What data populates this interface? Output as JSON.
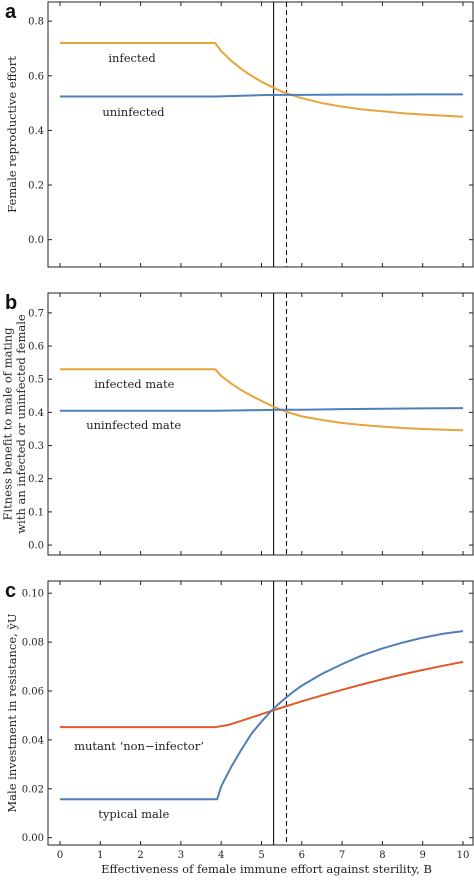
{
  "xaxis": {
    "label": "Effectiveness of female immune effort against sterility, B",
    "range": [
      0,
      10
    ],
    "ticks": [
      "0",
      "1",
      "2",
      "3",
      "4",
      "5",
      "6",
      "7",
      "8",
      "9",
      "10"
    ]
  },
  "vlines": {
    "solid_x": 5.3,
    "dashed_x": 5.62
  },
  "colors": {
    "orange": "#E8A33A",
    "blue": "#4F7FB8",
    "red": "#E05A2B",
    "frame": "#222222"
  },
  "chart_data": [
    {
      "type": "line",
      "panel": "a",
      "ylabel": "Female reproductive effort",
      "ylim": [
        -0.1,
        0.87
      ],
      "yticks": [
        "0.0",
        "0.2",
        "0.4",
        "0.6",
        "0.8"
      ],
      "series": [
        {
          "name": "infected",
          "color": "orange",
          "x": [
            0,
            1,
            2,
            3,
            3.85,
            4,
            4.25,
            4.5,
            4.75,
            5,
            5.25,
            5.5,
            5.75,
            6,
            6.5,
            7,
            7.5,
            8,
            8.5,
            9,
            9.5,
            10
          ],
          "y": [
            0.72,
            0.72,
            0.72,
            0.72,
            0.72,
            0.69,
            0.655,
            0.625,
            0.6,
            0.578,
            0.56,
            0.542,
            0.53,
            0.518,
            0.5,
            0.487,
            0.477,
            0.47,
            0.463,
            0.458,
            0.454,
            0.45
          ]
        },
        {
          "name": "uninfected",
          "color": "blue",
          "x": [
            0,
            1,
            2,
            3,
            3.85,
            4.5,
            5,
            5.5,
            6,
            7,
            8,
            9,
            10
          ],
          "y": [
            0.524,
            0.524,
            0.524,
            0.524,
            0.524,
            0.527,
            0.529,
            0.53,
            0.53,
            0.531,
            0.531,
            0.532,
            0.532
          ]
        }
      ],
      "annotations": [
        {
          "text": "infected",
          "x": 1.2,
          "y": 0.665
        },
        {
          "text": "uninfected",
          "x": 1.05,
          "y": 0.467
        }
      ]
    },
    {
      "type": "line",
      "panel": "b",
      "ylabel": "Fitness benefit to male of mating with an infected or uninfected female",
      "ylim": [
        -0.03,
        0.76
      ],
      "yticks": [
        "0.0",
        "0.1",
        "0.2",
        "0.3",
        "0.4",
        "0.5",
        "0.6",
        "0.7"
      ],
      "series": [
        {
          "name": "infected mate",
          "color": "orange",
          "x": [
            0,
            1,
            2,
            3,
            3.85,
            4,
            4.25,
            4.5,
            4.75,
            5,
            5.25,
            5.5,
            5.75,
            6,
            6.5,
            7,
            7.5,
            8,
            8.5,
            9,
            9.5,
            10
          ],
          "y": [
            0.53,
            0.53,
            0.53,
            0.53,
            0.53,
            0.51,
            0.487,
            0.467,
            0.45,
            0.435,
            0.42,
            0.407,
            0.397,
            0.388,
            0.377,
            0.368,
            0.362,
            0.357,
            0.353,
            0.35,
            0.348,
            0.346
          ]
        },
        {
          "name": "uninfected mate",
          "color": "blue",
          "x": [
            0,
            1,
            2,
            3,
            3.85,
            4.5,
            5,
            5.5,
            6,
            7,
            8,
            9,
            10
          ],
          "y": [
            0.405,
            0.405,
            0.405,
            0.405,
            0.405,
            0.406,
            0.407,
            0.408,
            0.408,
            0.41,
            0.411,
            0.412,
            0.413
          ]
        }
      ],
      "annotations": [
        {
          "text": "infected mate",
          "x": 0.85,
          "y": 0.485
        },
        {
          "text": "uninfected mate",
          "x": 0.65,
          "y": 0.362
        }
      ]
    },
    {
      "type": "line",
      "panel": "c",
      "ylabel": "Male investment in resistance, ỹU",
      "ylim": [
        -0.003,
        0.105
      ],
      "yticks": [
        "0.00",
        "0.02",
        "0.04",
        "0.06",
        "0.08",
        "0.10"
      ],
      "series": [
        {
          "name": "mutant ‘non−infector’",
          "color": "red",
          "x": [
            0,
            1,
            2,
            3,
            3.85,
            4.2,
            4.5,
            5,
            5.5,
            6,
            6.5,
            7,
            7.5,
            8,
            8.5,
            9,
            9.5,
            10
          ],
          "y": [
            0.0452,
            0.0452,
            0.0452,
            0.0452,
            0.0452,
            0.0462,
            0.0478,
            0.0505,
            0.0532,
            0.0558,
            0.0582,
            0.0605,
            0.0627,
            0.0648,
            0.0668,
            0.0686,
            0.0703,
            0.0719
          ]
        },
        {
          "name": "typical male",
          "color": "blue",
          "x": [
            0,
            1,
            2,
            3,
            3.9,
            4,
            4.25,
            4.5,
            4.75,
            5,
            5.25,
            5.5,
            5.75,
            6,
            6.5,
            7,
            7.5,
            8,
            8.5,
            9,
            9.5,
            10
          ],
          "y": [
            0.0157,
            0.0157,
            0.0157,
            0.0157,
            0.0157,
            0.021,
            0.029,
            0.036,
            0.0425,
            0.0475,
            0.052,
            0.0558,
            0.0592,
            0.0622,
            0.067,
            0.071,
            0.0746,
            0.0774,
            0.0798,
            0.0818,
            0.0834,
            0.0845
          ]
        }
      ],
      "annotations": [
        {
          "text": "mutant ‘non−infector’",
          "x": 0.35,
          "y": 0.0375
        },
        {
          "text": "typical male",
          "x": 0.95,
          "y": 0.0097
        }
      ]
    }
  ]
}
